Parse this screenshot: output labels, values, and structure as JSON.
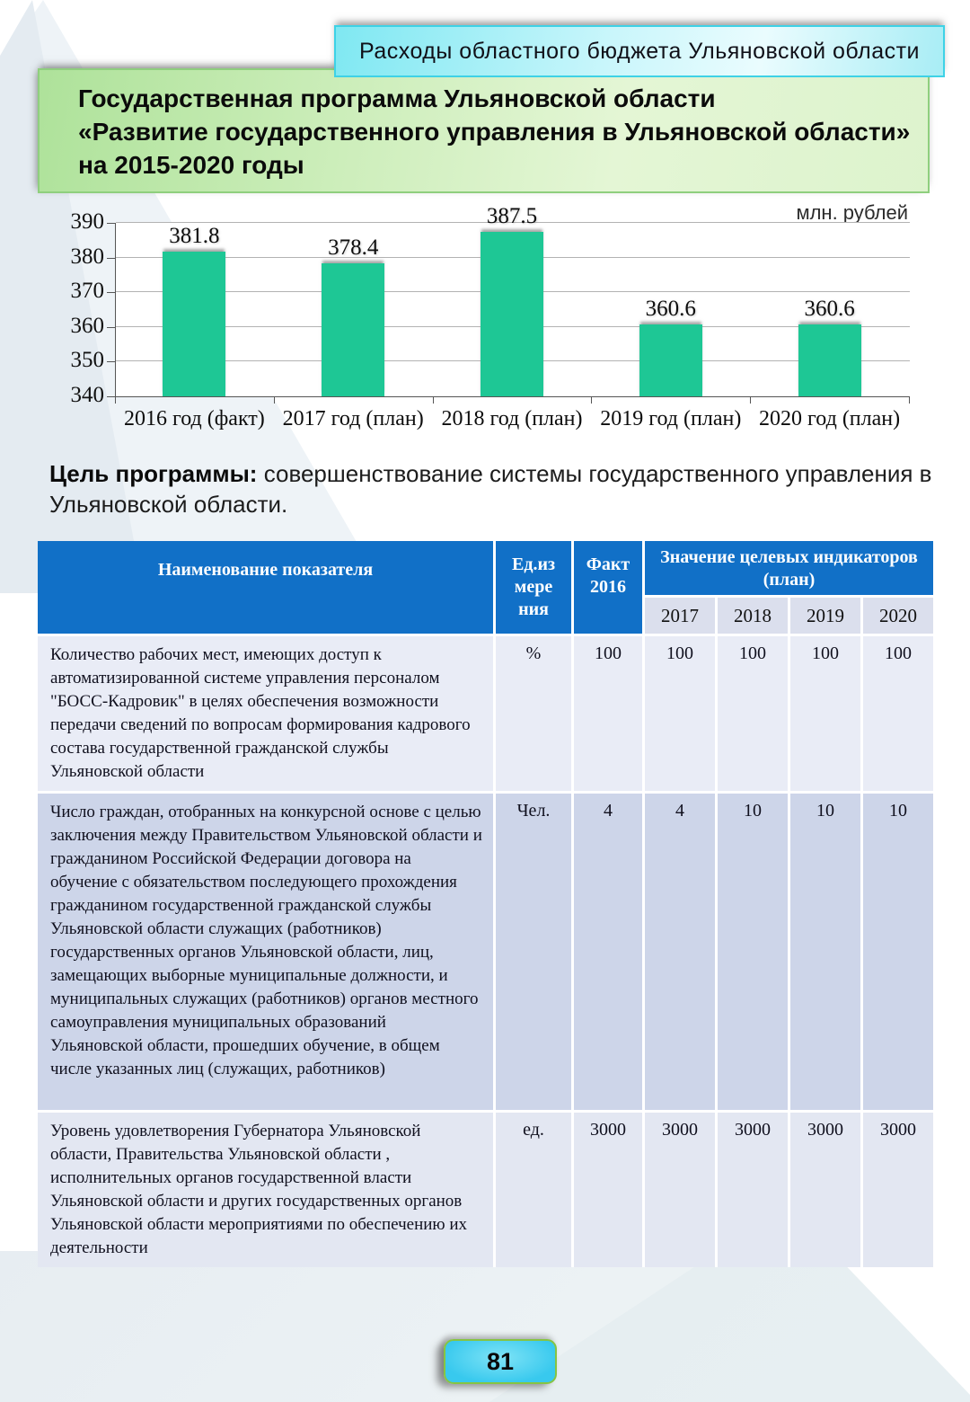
{
  "banner": {
    "label": "Расходы областного бюджета Ульяновской области"
  },
  "title": {
    "lines": [
      "Государственная программа Ульяновской области",
      "«Развитие государственного управления в Ульяновской области»",
      "на 2015-2020 годы"
    ]
  },
  "chart_data": {
    "type": "bar",
    "categories": [
      "2016 год (факт)",
      "2017 год (план)",
      "2018 год (план)",
      "2019 год (план)",
      "2020 год (план)"
    ],
    "values": [
      381.8,
      378.4,
      387.5,
      360.6,
      360.6
    ],
    "title": "",
    "xlabel": "",
    "ylabel": "млн. рублей",
    "ylim": [
      340,
      390
    ],
    "yticks": [
      340,
      350,
      360,
      370,
      380,
      390
    ],
    "bar_color": "#1ec795",
    "grid": true,
    "legend": "none"
  },
  "goal": {
    "label": "Цель программы:",
    "text": "совершенствование системы государственного управления в Ульяновской области."
  },
  "table": {
    "header": {
      "name": "Наименование показателя",
      "unit": "Ед.из\nмере\nния",
      "fact": "Факт\n2016",
      "plan_group": "Значение целевых индикаторов (план)",
      "years": [
        "2017",
        "2018",
        "2019",
        "2020"
      ]
    },
    "rows": [
      {
        "name": "Количество рабочих мест, имеющих доступ к автоматизированной системе управления персоналом \"БОСС-Кадровик\" в целях обеспечения возможности передачи сведений по вопросам формирования кадрового состава государственной гражданской службы Ульяновской области",
        "unit": "%",
        "fact": "100",
        "values": [
          "100",
          "100",
          "100",
          "100"
        ]
      },
      {
        "name": "Число граждан, отобранных на конкурсной основе с целью заключения между Правительством Ульяновской области и гражданином Российской Федерации договора на обучение с обязательством последующего прохождения гражданином государственной гражданской службы Ульяновской области служащих (работников) государственных органов Ульяновской области, лиц, замещающих выборные муниципальные должности, и муниципальных служащих (работников) органов местного самоуправления муниципальных образований Ульяновской области, прошедших обучение, в общем числе указанных лиц (служащих, работников)",
        "unit": "Чел.",
        "fact": "4",
        "values": [
          "4",
          "10",
          "10",
          "10"
        ]
      },
      {
        "name": "Уровень удовлетворения Губернатора Ульяновской области, Правительства Ульяновской области , исполнительных органов государственной власти Ульяновской области и других государственных органов Ульяновской области мероприятиями по обеспечению их деятельности",
        "unit": "ед.",
        "fact": "3000",
        "values": [
          "3000",
          "3000",
          "3000",
          "3000"
        ]
      }
    ]
  },
  "footer": {
    "page_number": "81"
  },
  "colors": {
    "bar": "#1ec795",
    "table_header_blue": "#1170c7",
    "banner_cyan": "#7fe8f2",
    "title_green": "#aee29a",
    "badge_cyan": "#38c9ee",
    "badge_border_green": "#86c443"
  }
}
